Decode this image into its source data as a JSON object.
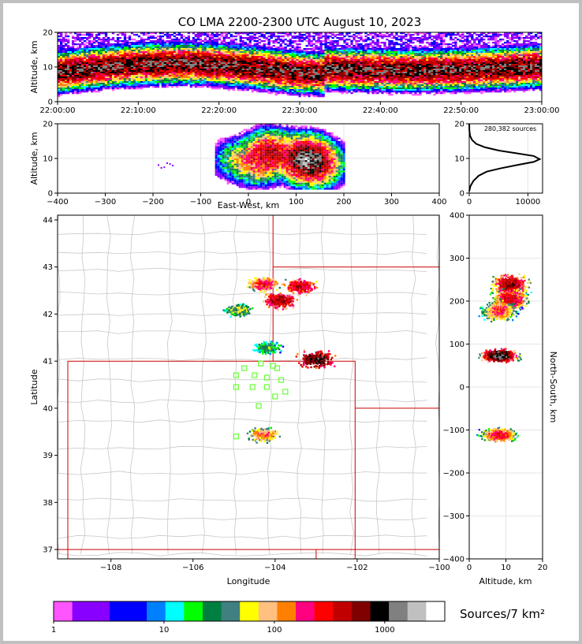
{
  "chart_data": [
    {
      "id": "time-height",
      "type": "heatmap",
      "title": "CO LMA 2200-2300 UTC August 10, 2023",
      "ylabel": "Altitude, km",
      "ylim": [
        0,
        20
      ],
      "yticks": [
        "0",
        "10",
        "20"
      ],
      "xticks": [
        "22:00:00",
        "22:10:00",
        "22:20:00",
        "22:30:00",
        "22:40:00",
        "22:50:00",
        "23:00:00"
      ]
    },
    {
      "id": "east-west-altitude",
      "type": "heatmap",
      "xlabel": "East-West, km",
      "ylabel": "Altitude, km",
      "xlim": [
        -400,
        400
      ],
      "ylim": [
        0,
        20
      ],
      "xticks": [
        "−400",
        "−300",
        "−200",
        "−100",
        "0",
        "100",
        "200",
        "300",
        "400"
      ],
      "yticks": [
        "0",
        "10",
        "20"
      ],
      "cells": [
        {
          "x": 120,
          "y": 10,
          "density": 1500
        },
        {
          "x": 45,
          "y": 12,
          "density": 400
        },
        {
          "x": 20,
          "y": 9,
          "density": 200
        },
        {
          "x": -20,
          "y": 10,
          "density": 60
        },
        {
          "x": 140,
          "y": 8,
          "density": 300
        }
      ]
    },
    {
      "id": "altitude-histogram",
      "type": "line",
      "annotation": "280,382 sources",
      "xlim": [
        0,
        12500
      ],
      "ylim": [
        0,
        20
      ],
      "xticks": [
        "0",
        "10000"
      ],
      "yticks": [
        "0",
        "10",
        "20"
      ],
      "x": [
        0,
        200,
        700,
        1600,
        3000,
        5500,
        8500,
        11000,
        12000,
        11000,
        8000,
        5000,
        2700,
        1200,
        500,
        150,
        30,
        0
      ],
      "y": [
        0.5,
        2,
        3.5,
        5,
        6.2,
        7.2,
        8.2,
        9.0,
        9.8,
        10.7,
        11.5,
        12.3,
        13.2,
        14.2,
        15.3,
        16.5,
        18,
        20
      ]
    },
    {
      "id": "plan-view",
      "type": "scatter",
      "xlabel": "Longitude",
      "ylabel": "Latitude",
      "xlim": [
        -109.3,
        -100.0
      ],
      "ylim": [
        36.8,
        44.1
      ],
      "xticks": [
        "−108",
        "−106",
        "−104",
        "−102",
        "−100"
      ],
      "yticks": [
        "37",
        "38",
        "39",
        "40",
        "41",
        "42",
        "43",
        "44"
      ],
      "storms": [
        {
          "lon": -104.3,
          "lat": 42.65,
          "density": 250
        },
        {
          "lon": -103.4,
          "lat": 42.6,
          "density": 400
        },
        {
          "lon": -103.9,
          "lat": 42.3,
          "density": 500
        },
        {
          "lon": -103.0,
          "lat": 41.05,
          "density": 800
        },
        {
          "lon": -104.3,
          "lat": 39.45,
          "density": 150
        },
        {
          "lon": -104.9,
          "lat": 42.1,
          "density": 60
        },
        {
          "lon": -104.2,
          "lat": 41.3,
          "density": 40
        }
      ],
      "stations": [
        {
          "lon": -104.75,
          "lat": 40.85
        },
        {
          "lon": -104.35,
          "lat": 40.95
        },
        {
          "lon": -104.05,
          "lat": 40.9
        },
        {
          "lon": -104.5,
          "lat": 40.7
        },
        {
          "lon": -104.95,
          "lat": 40.7
        },
        {
          "lon": -104.2,
          "lat": 40.65
        },
        {
          "lon": -103.85,
          "lat": 40.6
        },
        {
          "lon": -104.95,
          "lat": 40.45
        },
        {
          "lon": -104.55,
          "lat": 40.45
        },
        {
          "lon": -104.2,
          "lat": 40.45
        },
        {
          "lon": -103.75,
          "lat": 40.35
        },
        {
          "lon": -104.0,
          "lat": 40.25
        },
        {
          "lon": -104.4,
          "lat": 40.05
        },
        {
          "lon": -104.95,
          "lat": 39.4
        },
        {
          "lon": -103.95,
          "lat": 40.85
        }
      ]
    },
    {
      "id": "altitude-north-south",
      "type": "heatmap",
      "xlabel": "Altitude, km",
      "ylabel": "North-South, km",
      "xlim": [
        0,
        20
      ],
      "ylim": [
        -400,
        400
      ],
      "xticks": [
        "0",
        "10",
        "20"
      ],
      "yticks": [
        "−400",
        "−300",
        "−200",
        "−100",
        "0",
        "100",
        "200",
        "300",
        "400"
      ],
      "cells": [
        {
          "alt": 11,
          "ns": 240,
          "density": 600
        },
        {
          "alt": 11,
          "ns": 205,
          "density": 400
        },
        {
          "alt": 8,
          "ns": 180,
          "density": 200
        },
        {
          "alt": 8,
          "ns": 75,
          "density": 1200
        },
        {
          "alt": 8,
          "ns": -110,
          "density": 300
        }
      ]
    }
  ],
  "colorbar": {
    "title": "Sources/7 km²",
    "tick_labels": [
      "1",
      "10",
      "100",
      "1000"
    ],
    "tick_values": [
      1,
      10,
      100,
      1000
    ],
    "range": [
      1,
      3500
    ],
    "colors": [
      "#ff55ff",
      "#8800ff",
      "#8800ff",
      "#0000ff",
      "#0000ff",
      "#0080ff",
      "#00ffff",
      "#00ff00",
      "#008040",
      "#408080",
      "#ffff00",
      "#ffc080",
      "#ff8000",
      "#ff0080",
      "#ff0000",
      "#c00000",
      "#800000",
      "#000000",
      "#808080",
      "#c0c0c0",
      "#ffffff"
    ]
  },
  "colors": {
    "state_border": "#cc0000",
    "county_border": "#c8c8c8",
    "station": "#66ff33",
    "grid": "#e6e6e6"
  }
}
